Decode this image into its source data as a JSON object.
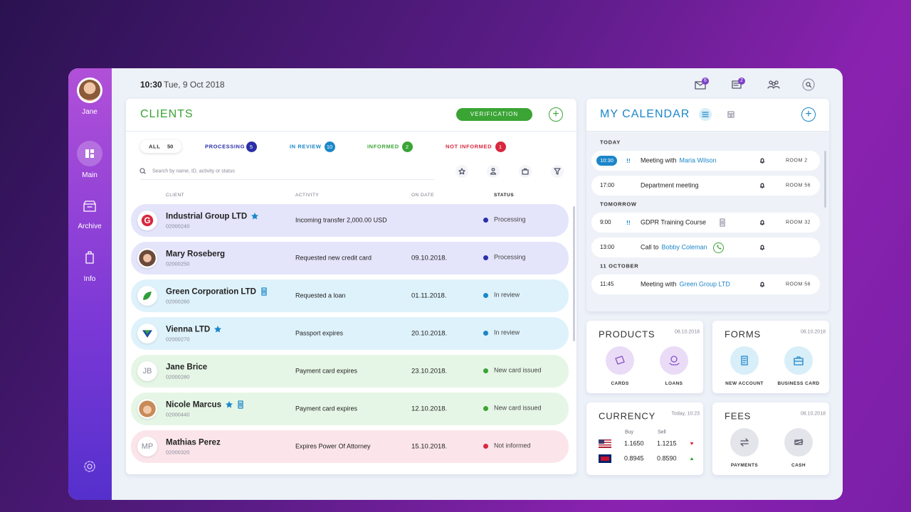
{
  "sidebar": {
    "user": "Jane",
    "nav": [
      "Main",
      "Archive",
      "Info"
    ]
  },
  "header": {
    "time": "10:30",
    "date": "Tue, 9 Oct 2018",
    "badges": [
      6,
      2
    ]
  },
  "clients": {
    "title": "CLIENTS",
    "button": "VERIFICATION",
    "tabs": [
      {
        "label": "ALL",
        "count": 50
      },
      {
        "label": "PROCESSING",
        "count": 5
      },
      {
        "label": "IN REVIEW",
        "count": 10
      },
      {
        "label": "INFORMED",
        "count": 2
      },
      {
        "label": "NOT INFORMED",
        "count": 1
      }
    ],
    "search": "Search by name, ID, activity or status",
    "columns": [
      "CLIENT",
      "ACTIVITY",
      "ON DATE",
      "STATUS"
    ],
    "rows": [
      {
        "name": "Industrial Group LTD",
        "id": "02000240",
        "activity": "Incoming transfer 2,000.00 USD",
        "status": "Processing",
        "starred": true
      },
      {
        "name": "Mary Roseberg",
        "id": "02000250",
        "activity": "Requested new credit card",
        "date": "09.10.2018.",
        "status": "Processing"
      },
      {
        "name": "Green Corporation LTD",
        "id": "02000260",
        "activity": "Requested a loan",
        "date": "01.11.2018.",
        "status": "In review",
        "note": true
      },
      {
        "name": "Vienna LTD",
        "id": "02000270",
        "activity": "Passport expires",
        "date": "20.10.2018.",
        "status": "In review",
        "starred": true
      },
      {
        "name": "Jane Brice",
        "id": "02000280",
        "activity": "Payment card expires",
        "date": "23.10.2018.",
        "status": "New card issued",
        "initials": "JB"
      },
      {
        "name": "Nicole Marcus",
        "id": "02000440",
        "activity": "Payment card expires",
        "date": "12.10.2018.",
        "status": "New card issued",
        "starred": true,
        "note": true
      },
      {
        "name": "Mathias Perez",
        "id": "02000320",
        "activity": "Expires Power Of Attorney",
        "date": "15.10.2018.",
        "status": "Not informed",
        "initials": "MP"
      }
    ]
  },
  "calendar": {
    "title": "MY CALENDAR",
    "groups": [
      {
        "label": "TODAY",
        "events": [
          {
            "time": "10:30",
            "priority": "!!",
            "text": "Meeting with",
            "link": "Maria Wilson",
            "room": "ROOM 2"
          },
          {
            "time": "17:00",
            "text": "Department meeting",
            "room": "ROOM 56"
          }
        ]
      },
      {
        "label": "TOMORROW",
        "events": [
          {
            "time": "9:00",
            "priority": "!!",
            "text": "GDPR Training Course",
            "room": "ROOM 32"
          },
          {
            "time": "13:00",
            "text": "Call to",
            "link": "Bobby Coleman"
          }
        ]
      },
      {
        "label": "11 OCTOBER",
        "events": [
          {
            "time": "11:45",
            "text": "Meeting with",
            "link": "Green Group LTD",
            "room": "ROOM 56"
          }
        ]
      }
    ]
  },
  "products": {
    "title": "PRODUCTS",
    "date": "08.10.2018",
    "items": [
      "CARDS",
      "LOANS"
    ]
  },
  "forms": {
    "title": "FORMS",
    "date": "08.10.2018",
    "items": [
      "NEW ACCOUNT",
      "BUSINESS CARD"
    ]
  },
  "currency": {
    "title": "CURRENCY",
    "date": "Today, 10:23",
    "columns": [
      "Buy",
      "Sell"
    ],
    "rows": [
      [
        "1.1650",
        "1.1215"
      ],
      [
        "0.8945",
        "0.8590"
      ]
    ]
  },
  "fees": {
    "title": "FEES",
    "date": "08.10.2018",
    "items": [
      "PAYMENTS",
      "CASH"
    ]
  }
}
